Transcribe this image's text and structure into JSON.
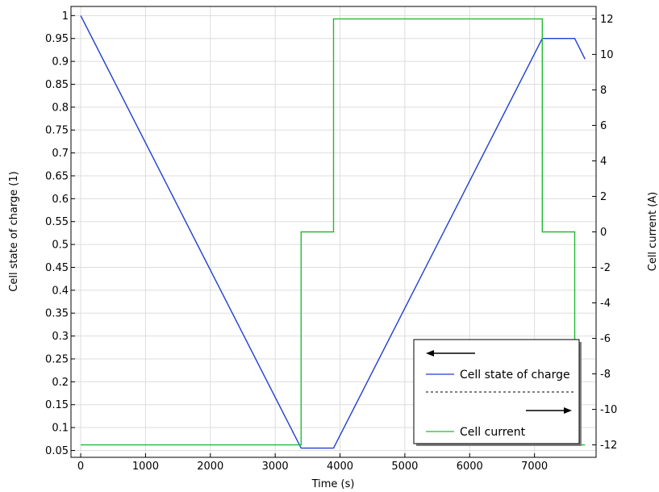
{
  "chart_data": {
    "type": "line",
    "xlabel": "Time (s)",
    "ylabel_left": "Cell state of charge (1)",
    "ylabel_right": "Cell current (A)",
    "xlim": [
      -150,
      7950
    ],
    "ylim_left": [
      0.035,
      1.02
    ],
    "ylim_right": [
      -12.7,
      12.7
    ],
    "x_ticks": [
      0,
      1000,
      2000,
      3000,
      4000,
      5000,
      6000,
      7000
    ],
    "y_left_ticks": [
      0.05,
      0.1,
      0.15,
      0.2,
      0.25,
      0.3,
      0.35,
      0.4,
      0.45,
      0.5,
      0.55,
      0.6,
      0.65,
      0.7,
      0.75,
      0.8,
      0.85,
      0.9,
      0.95,
      1
    ],
    "y_right_ticks": [
      -12,
      -10,
      -8,
      -6,
      -4,
      -2,
      0,
      2,
      4,
      6,
      8,
      10,
      12
    ],
    "grid": true,
    "legend_position": "bottom-right",
    "series": [
      {
        "name": "Cell state of charge",
        "axis": "left",
        "color": "#1f3fd0",
        "x": [
          0,
          3400,
          3900,
          7120,
          7620,
          7780
        ],
        "y": [
          1.0,
          0.055,
          0.055,
          0.95,
          0.95,
          0.905
        ]
      },
      {
        "name": "Cell current",
        "axis": "right",
        "color": "#22bb33",
        "x": [
          0,
          3400,
          3400,
          3900,
          3900,
          7120,
          7120,
          7620,
          7620,
          7780
        ],
        "y": [
          -12,
          -12,
          0,
          0,
          12,
          12,
          0,
          0,
          -12,
          -12
        ]
      }
    ]
  },
  "legend": {
    "left_axis_arrow": "left-arrow-icon",
    "right_axis_arrow": "right-arrow-icon"
  }
}
